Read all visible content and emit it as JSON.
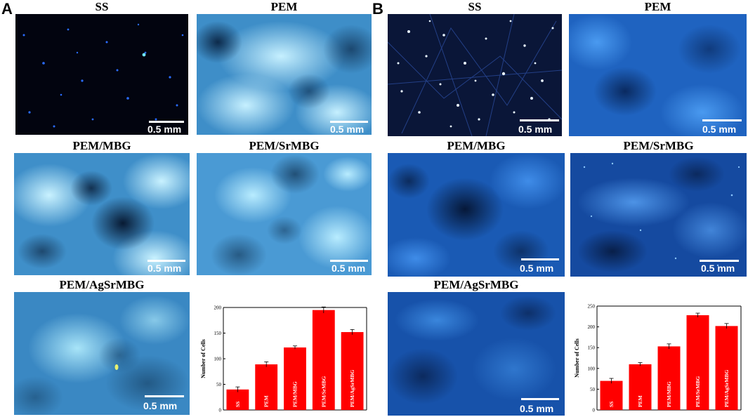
{
  "panels": [
    {
      "letter": "A",
      "images": [
        {
          "title": "SS",
          "scalebar": "0.5 mm"
        },
        {
          "title": "PEM",
          "scalebar": "0.5 mm"
        },
        {
          "title": "PEM/MBG",
          "scalebar": "0.5 mm"
        },
        {
          "title": "PEM/SrMBG",
          "scalebar": "0.5 mm"
        },
        {
          "title": "PEM/AgSrMBG",
          "scalebar": "0.5 mm"
        }
      ]
    },
    {
      "letter": "B",
      "images": [
        {
          "title": "SS",
          "scalebar": "0.5 mm"
        },
        {
          "title": "PEM",
          "scalebar": "0.5 mm"
        },
        {
          "title": "PEM/MBG",
          "scalebar": "0.5 mm"
        },
        {
          "title": "PEM/SrMBG",
          "scalebar": "0.5 mm"
        },
        {
          "title": "PEM/AgSrMBG",
          "scalebar": "0.5 mm"
        }
      ]
    }
  ],
  "colors": {
    "bar": "#ff0000",
    "fluorescence_blue": "#1e90ff",
    "background_dark": "#05071a"
  },
  "chart_data": [
    {
      "type": "bar",
      "categories": [
        "SS",
        "PEM",
        "PEM/MBG",
        "PEM/SrMBG",
        "PEM/AgSrMBG"
      ],
      "values": [
        40,
        89,
        122,
        195,
        152
      ],
      "errors": [
        5,
        5,
        3,
        6,
        5
      ],
      "ylabel": "Number of Cells",
      "xlabel": "",
      "ylim": [
        0,
        200
      ],
      "yticks": [
        0,
        50,
        100,
        150,
        200
      ],
      "grid": false
    },
    {
      "type": "bar",
      "categories": [
        "SS",
        "PEM",
        "PEM/MBG",
        "PEM/SrMBG",
        "PEM/AgSrMBG"
      ],
      "values": [
        70,
        110,
        153,
        228,
        202
      ],
      "errors": [
        6,
        4,
        6,
        5,
        6
      ],
      "ylabel": "Number of Cells",
      "xlabel": "",
      "ylim": [
        0,
        250
      ],
      "yticks": [
        0,
        50,
        100,
        150,
        200,
        250
      ],
      "grid": false
    }
  ]
}
